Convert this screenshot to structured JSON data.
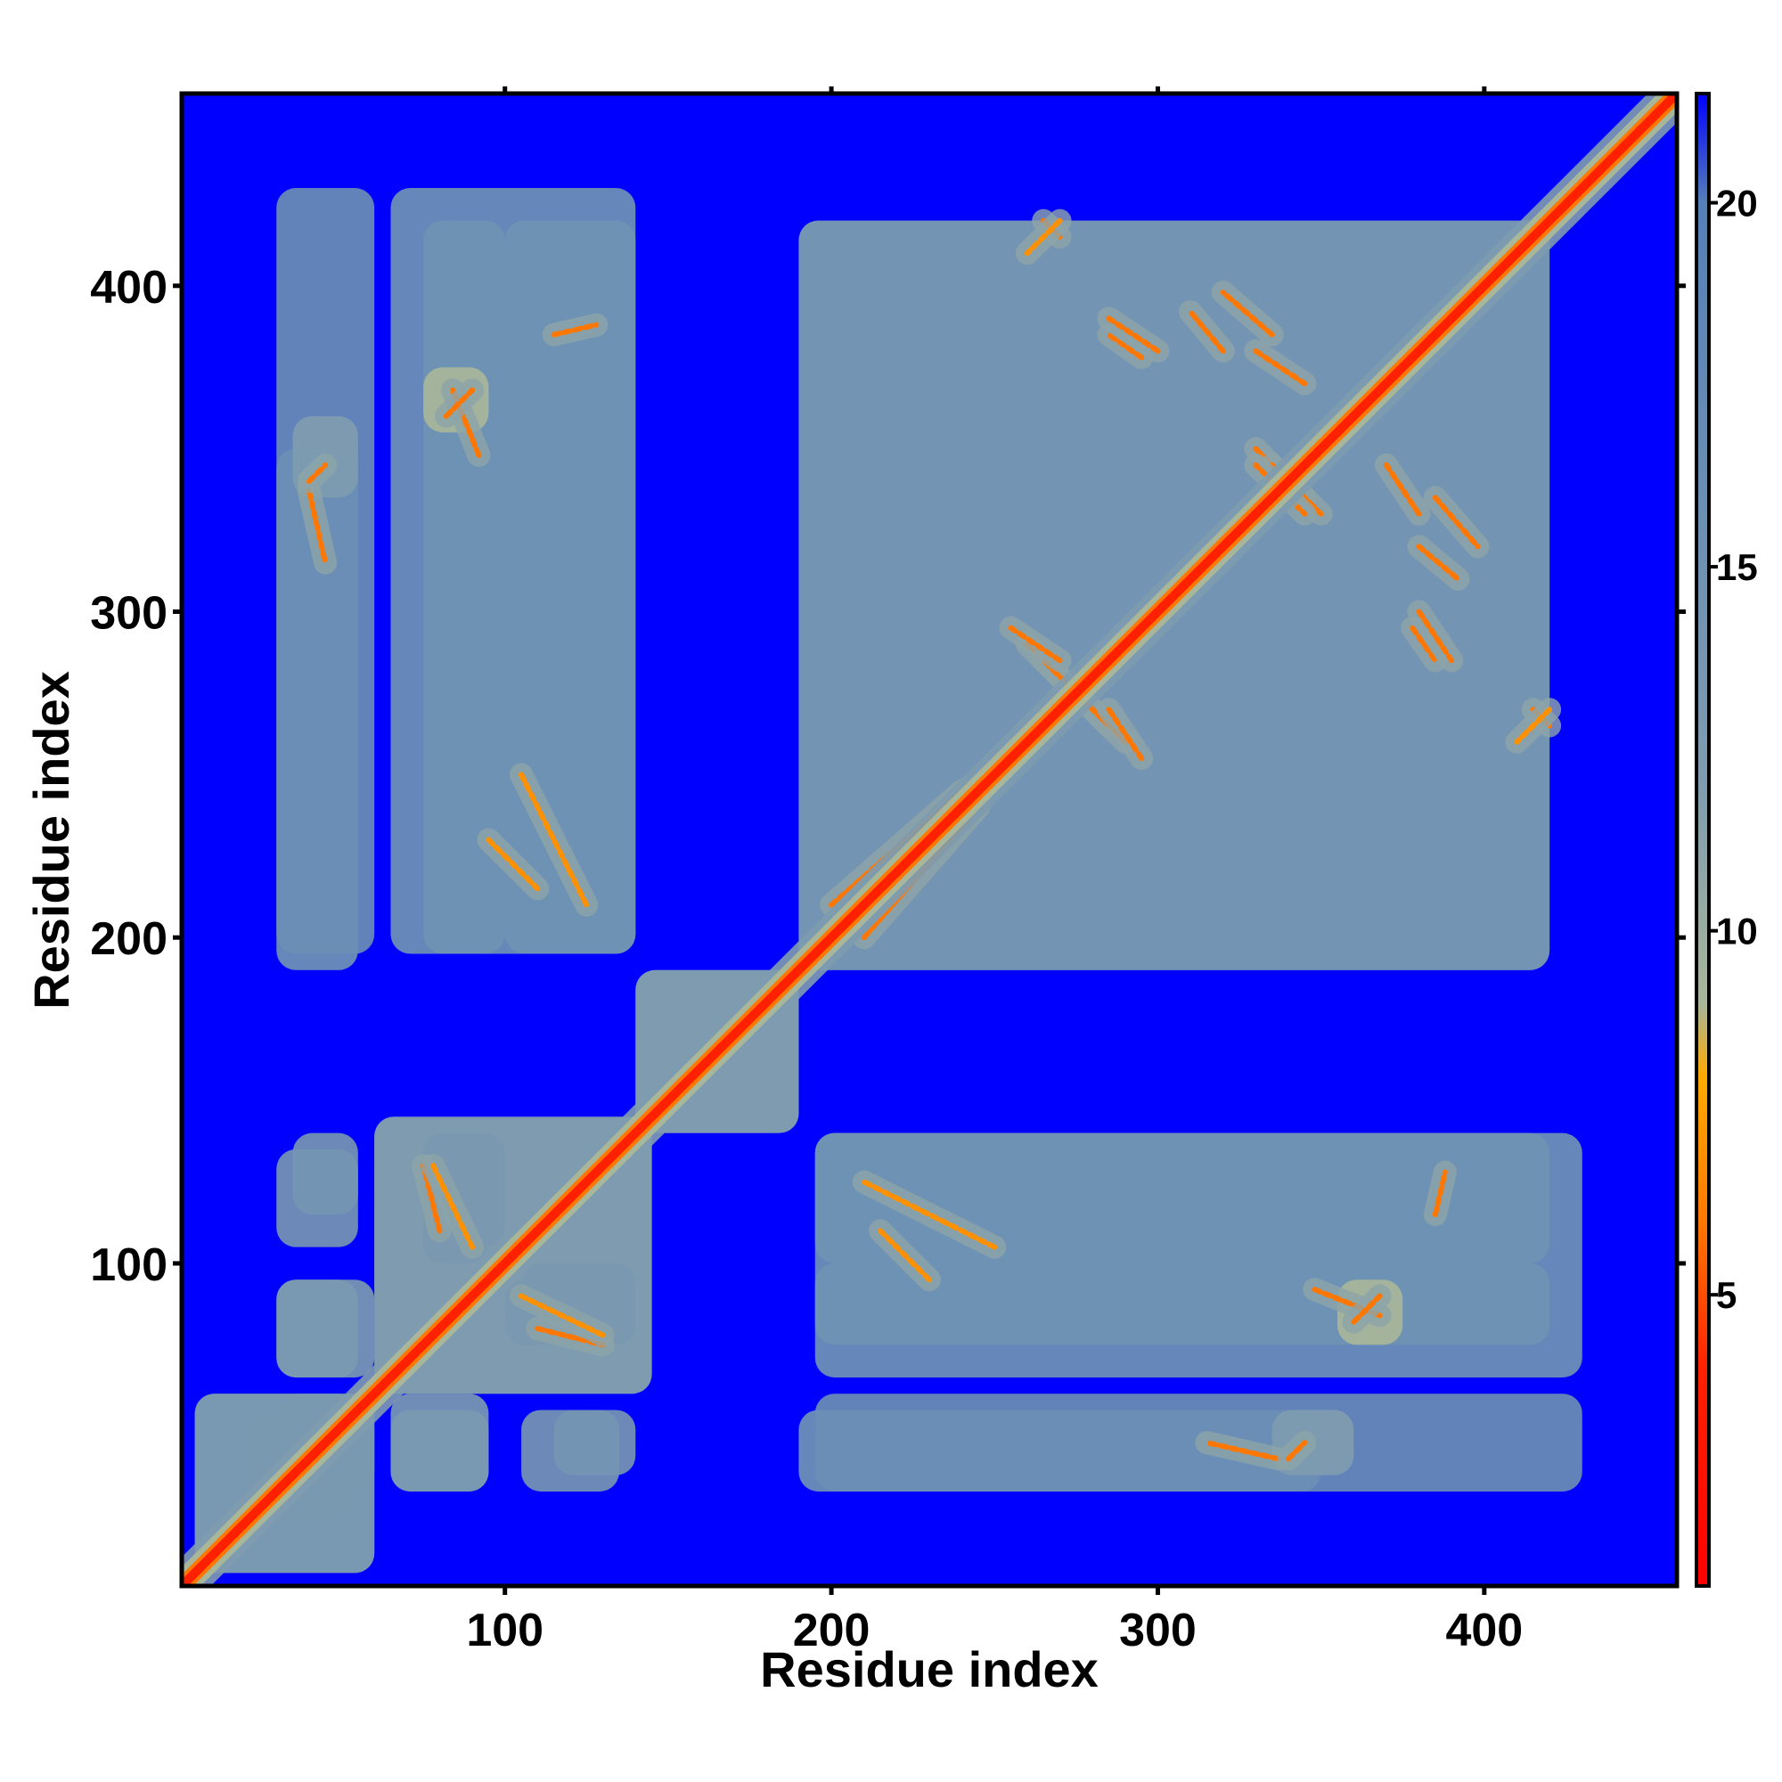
{
  "chart_data": {
    "type": "heatmap",
    "title": "",
    "xlabel": "Residue index",
    "ylabel": "Residue index",
    "xlim": [
      1,
      459
    ],
    "ylim": [
      1,
      459
    ],
    "xticks": [
      100,
      200,
      300,
      400
    ],
    "yticks": [
      100,
      200,
      300,
      400
    ],
    "xtick_labels": [
      "100",
      "200",
      "300",
      "400"
    ],
    "ytick_labels": [
      "100",
      "200",
      "300",
      "400"
    ],
    "grid": false,
    "symmetric": true,
    "colorbar": {
      "placement": "right",
      "range": [
        1,
        21.5
      ],
      "ticks": [
        5,
        10,
        15,
        20
      ],
      "tick_labels": [
        "5",
        "10",
        "15",
        "20"
      ],
      "colors": [
        {
          "value": 1,
          "color": "#ff0000"
        },
        {
          "value": 4,
          "color": "#ff2200"
        },
        {
          "value": 6,
          "color": "#ff7700"
        },
        {
          "value": 8,
          "color": "#ffaa00"
        },
        {
          "value": 9,
          "color": "#a8b69a"
        },
        {
          "value": 12,
          "color": "#7f9cb0"
        },
        {
          "value": 20,
          "color": "#5580b8"
        },
        {
          "value": 21.5,
          "color": "#0000ff"
        }
      ],
      "background_color": "#0000ff"
    },
    "description_of_pattern": "",
    "diagonal": {
      "from": 1,
      "to": 459,
      "value": 3.8
    },
    "contact_regions": [
      {
        "x": [
          5,
          60
        ],
        "y": [
          5,
          60
        ],
        "level": 13
      },
      {
        "x": [
          30,
          55
        ],
        "y": [
          20,
          60
        ],
        "level": 13
      },
      {
        "x": [
          30,
          55
        ],
        "y": [
          65,
          95
        ],
        "level": 13
      },
      {
        "x": [
          35,
          55
        ],
        "y": [
          115,
          140
        ],
        "level": 14
      },
      {
        "x": [
          30,
          55
        ],
        "y": [
          190,
          350
        ],
        "level": 15
      },
      {
        "x": [
          65,
          95
        ],
        "y": [
          30,
          60
        ],
        "level": 13
      },
      {
        "x": [
          60,
          145
        ],
        "y": [
          60,
          145
        ],
        "level": 12
      },
      {
        "x": [
          100,
          140
        ],
        "y": [
          75,
          95
        ],
        "level": 13
      },
      {
        "x": [
          105,
          135
        ],
        "y": [
          30,
          55
        ],
        "level": 14
      },
      {
        "x": [
          75,
          100
        ],
        "y": [
          105,
          140
        ],
        "level": 13
      },
      {
        "x": [
          140,
          190
        ],
        "y": [
          140,
          190
        ],
        "level": 12
      },
      {
        "x": [
          75,
          100
        ],
        "y": [
          195,
          420
        ],
        "level": 15
      },
      {
        "x": [
          100,
          140
        ],
        "y": [
          195,
          420
        ],
        "level": 15
      },
      {
        "x": [
          190,
          420
        ],
        "y": [
          190,
          420
        ],
        "level": 14
      },
      {
        "x": [
          195,
          430
        ],
        "y": [
          65,
          140
        ],
        "level": 15
      },
      {
        "x": [
          195,
          430
        ],
        "y": [
          30,
          60
        ],
        "level": 16
      },
      {
        "x": [
          355,
          375
        ],
        "y": [
          75,
          95
        ],
        "level": 9
      },
      {
        "x": [
          335,
          360
        ],
        "y": [
          35,
          55
        ],
        "level": 12
      }
    ],
    "contact_lines": [
      {
        "from": [
          84,
          368
        ],
        "to": [
          92,
          348
        ],
        "level": 6
      },
      {
        "from": [
          115,
          385
        ],
        "to": [
          128,
          388
        ],
        "level": 6
      },
      {
        "from": [
          105,
          250
        ],
        "to": [
          125,
          210
        ],
        "level": 7
      },
      {
        "from": [
          110,
          80
        ],
        "to": [
          130,
          75
        ],
        "level": 6
      },
      {
        "from": [
          78,
          130
        ],
        "to": [
          90,
          105
        ],
        "level": 7
      },
      {
        "from": [
          40,
          337
        ],
        "to": [
          45,
          315
        ],
        "level": 6
      },
      {
        "from": [
          200,
          210
        ],
        "to": [
          240,
          245
        ],
        "level": 6
      },
      {
        "from": [
          260,
          290
        ],
        "to": [
          285,
          265
        ],
        "level": 6
      },
      {
        "from": [
          285,
          270
        ],
        "to": [
          295,
          255
        ],
        "level": 6
      },
      {
        "from": [
          295,
          378
        ],
        "to": [
          285,
          385
        ],
        "level": 6
      },
      {
        "from": [
          335,
          385
        ],
        "to": [
          320,
          398
        ],
        "level": 6
      },
      {
        "from": [
          330,
          350
        ],
        "to": [
          345,
          335
        ],
        "level": 6
      },
      {
        "from": [
          335,
          340
        ],
        "to": [
          345,
          330
        ],
        "level": 6
      },
      {
        "from": [
          380,
          320
        ],
        "to": [
          392,
          310
        ],
        "level": 6
      },
      {
        "from": [
          380,
          300
        ],
        "to": [
          390,
          285
        ],
        "level": 6
      },
      {
        "from": [
          265,
          420
        ],
        "to": [
          270,
          415
        ],
        "level": 6
      },
      {
        "from": [
          330,
          380
        ],
        "to": [
          345,
          370
        ],
        "level": 6
      },
      {
        "from": [
          230,
          95
        ],
        "to": [
          215,
          110
        ],
        "level": 7
      },
      {
        "from": [
          360,
          82
        ],
        "to": [
          368,
          90
        ],
        "level": 6
      },
      {
        "from": [
          340,
          40
        ],
        "to": [
          345,
          45
        ],
        "level": 6
      },
      {
        "from": [
          420,
          270
        ],
        "to": [
          410,
          260
        ],
        "level": 7
      }
    ]
  }
}
